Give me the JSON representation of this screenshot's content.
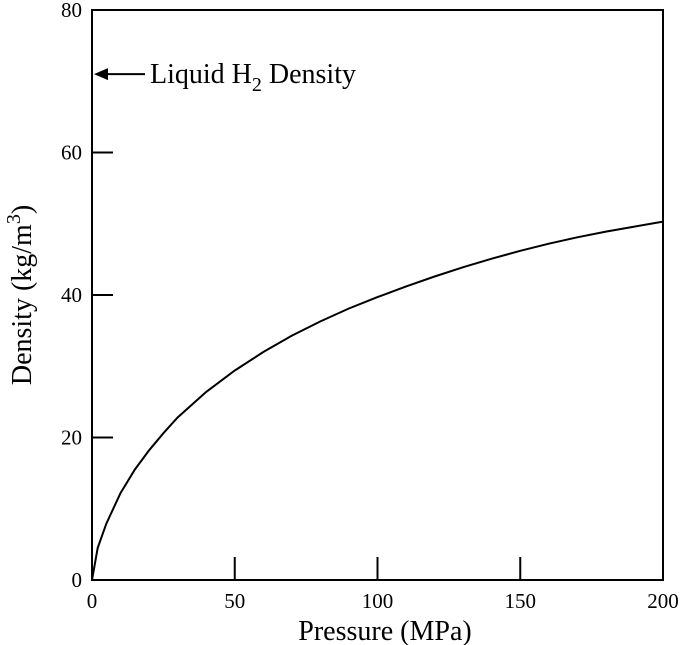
{
  "chart_data": {
    "type": "line",
    "title": "",
    "xlabel": "Pressure (MPa)",
    "ylabel": {
      "main": "Density (kg/m",
      "sup": "3",
      "close": ")"
    },
    "xlim": [
      0,
      200
    ],
    "ylim": [
      0,
      80
    ],
    "xticks": [
      0,
      50,
      100,
      150,
      200
    ],
    "yticks": [
      0,
      20,
      40,
      60,
      80
    ],
    "grid": false,
    "series": [
      {
        "x": [
          0,
          2,
          5,
          10,
          15,
          20,
          25,
          30,
          40,
          50,
          60,
          70,
          80,
          90,
          100,
          110,
          120,
          130,
          140,
          150,
          160,
          170,
          180,
          190,
          200
        ],
        "y": [
          0,
          4.5,
          7.9,
          12.2,
          15.5,
          18.2,
          20.6,
          22.8,
          26.4,
          29.4,
          32.0,
          34.3,
          36.3,
          38.1,
          39.7,
          41.2,
          42.6,
          43.9,
          45.1,
          46.2,
          47.2,
          48.1,
          48.9,
          49.6,
          50.3
        ]
      }
    ],
    "annotation": {
      "text_before": "Liquid H",
      "sub": "2",
      "text_after": " Density",
      "y": 71
    }
  }
}
